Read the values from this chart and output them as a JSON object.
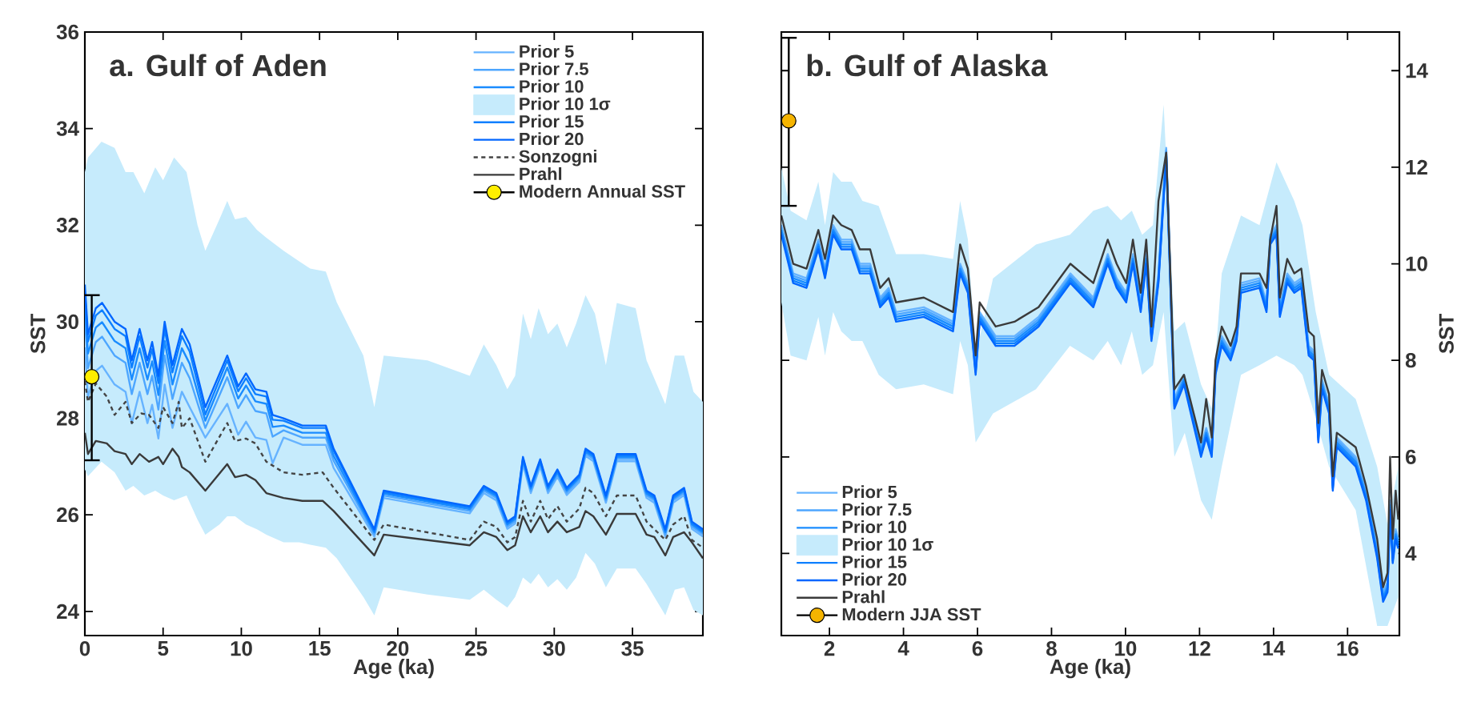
{
  "chart_data": [
    {
      "type": "line",
      "title": "a. Gulf of Aden",
      "xlabel": "Age (ka)",
      "ylabel": "SST",
      "legend": "top right",
      "xlim": [
        0,
        39.5
      ],
      "ylim": [
        23.5,
        36
      ],
      "xticks": [
        0,
        5,
        10,
        15,
        20,
        25,
        30,
        35
      ],
      "yticks": [
        24,
        26,
        28,
        30,
        32,
        34,
        36
      ],
      "x": [
        0,
        0.2,
        0.7,
        1.1,
        1.9,
        2.6,
        3.0,
        3.5,
        4.0,
        4.3,
        4.7,
        5.1,
        5.6,
        6.2,
        6.7,
        7.7,
        9.1,
        9.8,
        10.3,
        10.9,
        11.6,
        12.0,
        12.7,
        13.9,
        15.4,
        15.9,
        18.5,
        19.1,
        24.6,
        25.5,
        26.3,
        27.0,
        27.5,
        28.0,
        28.5,
        29.1,
        29.6,
        30.2,
        30.8,
        31.6,
        32.0,
        32.5,
        33.3,
        34.0,
        35.2,
        35.9,
        36.4,
        37.1,
        37.6,
        38.3,
        38.8,
        39.5
      ],
      "series": [
        {
          "name": "Prior 5",
          "color": "#66b3ff",
          "values": [
            29.47,
            28.44,
            28.98,
            29.09,
            28.7,
            28.55,
            27.9,
            28.55,
            27.9,
            28.28,
            27.58,
            28.7,
            27.8,
            28.55,
            28.23,
            27.6,
            28.3,
            27.66,
            27.93,
            27.6,
            27.55,
            27.07,
            27.6,
            27.45,
            27.45,
            26.97,
            25.55,
            26.35,
            26.03,
            26.45,
            26.3,
            25.71,
            25.82,
            27.05,
            26.45,
            27.0,
            26.45,
            26.79,
            26.41,
            26.68,
            27.22,
            27.11,
            26.25,
            27.11,
            27.11,
            26.35,
            26.25,
            25.55,
            26.25,
            26.41,
            25.71,
            25.55
          ]
        },
        {
          "name": "Prior 7.5",
          "color": "#4da6ff",
          "values": [
            30.07,
            29.04,
            29.58,
            29.69,
            29.3,
            29.15,
            28.5,
            29.15,
            28.5,
            28.88,
            28.18,
            29.3,
            28.4,
            29.15,
            28.83,
            27.8,
            28.85,
            28.21,
            28.48,
            28.15,
            28.1,
            27.62,
            27.75,
            27.6,
            27.6,
            27.12,
            25.6,
            26.4,
            26.08,
            26.5,
            26.35,
            25.76,
            25.87,
            27.1,
            26.5,
            27.05,
            26.5,
            26.84,
            26.46,
            26.73,
            27.27,
            27.16,
            26.3,
            27.16,
            27.16,
            26.4,
            26.3,
            25.6,
            26.3,
            26.46,
            25.76,
            25.6
          ]
        },
        {
          "name": "Prior 10",
          "color": "#1a8cff",
          "values": [
            30.37,
            29.34,
            29.88,
            29.99,
            29.6,
            29.45,
            28.8,
            29.45,
            28.8,
            29.18,
            28.48,
            29.6,
            28.7,
            29.45,
            29.13,
            27.95,
            29.05,
            28.41,
            28.68,
            28.35,
            28.3,
            27.82,
            27.85,
            27.7,
            27.7,
            27.22,
            25.64,
            26.44,
            26.12,
            26.54,
            26.39,
            25.8,
            25.91,
            27.14,
            26.54,
            27.09,
            26.54,
            26.88,
            26.5,
            26.77,
            27.31,
            27.2,
            26.34,
            27.2,
            27.2,
            26.44,
            26.34,
            25.64,
            26.34,
            26.5,
            25.8,
            25.64
          ]
        },
        {
          "name": "Prior 10 1σ",
          "type": "area",
          "color": "#c6ebfc",
          "values": [
            null,
            null,
            null,
            null,
            null,
            null,
            null,
            null,
            null,
            null,
            null,
            null,
            null,
            null,
            null,
            null,
            null,
            null,
            null,
            null,
            null,
            null,
            null,
            null,
            null,
            null,
            null,
            null,
            null,
            null,
            null,
            null,
            null,
            null,
            null,
            null,
            null,
            null,
            null,
            null,
            null,
            null,
            null,
            null,
            null,
            null,
            null,
            null,
            null,
            null,
            null
          ],
          "x": [
            0,
            0.2,
            1.06,
            1.9,
            2.6,
            3.1,
            3.8,
            4.5,
            5.0,
            5.7,
            6.5,
            7.2,
            7.7,
            8.6,
            9.1,
            9.6,
            10.3,
            11.0,
            11.6,
            12.7,
            13.7,
            14.4,
            15.4,
            16.1,
            17.8,
            18.5,
            19.1,
            21.9,
            24.6,
            25.5,
            26.3,
            27.0,
            27.5,
            28.0,
            28.5,
            29.0,
            29.6,
            30.2,
            30.8,
            31.4,
            32.0,
            32.6,
            33.3,
            34.0,
            35.2,
            35.9,
            37.1,
            37.7,
            38.3,
            38.9,
            39.5
          ],
          "upper": [
            33.1,
            33.4,
            33.73,
            33.6,
            33.1,
            33.1,
            32.66,
            33.2,
            32.93,
            33.4,
            33.1,
            32.0,
            31.47,
            32.12,
            32.5,
            32.12,
            32.17,
            31.9,
            31.74,
            31.47,
            31.25,
            31.1,
            31.04,
            30.4,
            29.3,
            28.23,
            29.3,
            29.2,
            28.88,
            29.53,
            29.1,
            28.6,
            28.88,
            30.17,
            29.64,
            30.28,
            29.74,
            29.96,
            29.47,
            29.96,
            30.55,
            30.17,
            29.1,
            30.39,
            30.28,
            29.2,
            28.29,
            29.3,
            29.3,
            28.55,
            28.34
          ],
          "lower": [
            26.94,
            26.8,
            27.1,
            26.88,
            26.5,
            26.6,
            26.4,
            26.5,
            26.4,
            26.3,
            26.4,
            25.9,
            25.59,
            25.8,
            25.97,
            25.97,
            25.8,
            25.7,
            25.59,
            25.43,
            25.43,
            25.38,
            25.32,
            25.1,
            24.3,
            23.92,
            24.5,
            24.35,
            24.24,
            24.45,
            24.24,
            24.08,
            24.3,
            24.7,
            24.57,
            24.78,
            24.5,
            24.67,
            24.45,
            24.7,
            25.21,
            24.99,
            24.5,
            24.89,
            24.89,
            24.57,
            23.92,
            24.45,
            24.5,
            24.03,
            23.92
          ]
        },
        {
          "name": "Prior 15",
          "color": "#0d7fff",
          "values": [
            30.62,
            29.59,
            30.13,
            30.24,
            29.85,
            29.7,
            29.05,
            29.7,
            29.05,
            29.43,
            28.73,
            29.85,
            28.95,
            29.7,
            29.38,
            28.08,
            29.2,
            28.56,
            28.83,
            28.5,
            28.45,
            27.97,
            27.95,
            27.8,
            27.8,
            27.32,
            25.67,
            26.47,
            26.15,
            26.57,
            26.42,
            25.83,
            25.94,
            27.17,
            26.57,
            27.12,
            26.57,
            26.91,
            26.53,
            26.8,
            27.34,
            27.23,
            26.37,
            27.23,
            27.23,
            26.47,
            26.37,
            25.67,
            26.37,
            26.53,
            25.83,
            25.67
          ]
        },
        {
          "name": "Prior 20",
          "color": "#0066ff",
          "values": [
            30.77,
            29.74,
            30.28,
            30.39,
            30.0,
            29.85,
            29.2,
            29.85,
            29.2,
            29.58,
            28.88,
            30.0,
            29.1,
            29.85,
            29.53,
            28.23,
            29.3,
            28.66,
            28.93,
            28.6,
            28.55,
            28.07,
            28.0,
            27.85,
            27.85,
            27.37,
            25.7,
            26.5,
            26.18,
            26.6,
            26.45,
            25.86,
            25.97,
            27.2,
            26.6,
            27.15,
            26.6,
            26.94,
            26.56,
            26.83,
            27.37,
            27.26,
            26.4,
            27.26,
            27.26,
            26.5,
            26.4,
            25.7,
            26.4,
            26.56,
            25.86,
            25.7
          ]
        },
        {
          "name": "Sonzogni",
          "color": "#444444",
          "line_style": "dashed",
          "x": [
            0,
            0.2,
            0.7,
            1.4,
            1.9,
            2.6,
            3.0,
            3.6,
            4.1,
            4.7,
            5.0,
            5.6,
            6.0,
            6.2,
            6.7,
            7.7,
            9.1,
            9.6,
            10.3,
            10.9,
            11.6,
            12.7,
            13.9,
            15.2,
            15.9,
            18.5,
            19.1,
            24.6,
            25.5,
            26.3,
            27.0,
            27.5,
            28.0,
            28.5,
            29.1,
            29.6,
            30.2,
            30.8,
            31.6,
            32.0,
            32.5,
            33.3,
            34.0,
            35.2,
            35.9,
            37.1,
            37.6,
            38.3,
            38.8,
            39.5
          ],
          "values": [
            28.77,
            28.34,
            28.72,
            28.45,
            28.07,
            28.34,
            27.9,
            28.1,
            28.07,
            27.8,
            28.23,
            27.9,
            28.34,
            27.8,
            28.0,
            27.1,
            27.9,
            27.53,
            27.58,
            27.48,
            27.1,
            26.88,
            26.83,
            26.88,
            26.56,
            25.48,
            25.8,
            25.48,
            25.86,
            25.75,
            25.43,
            25.54,
            26.29,
            25.86,
            26.29,
            25.91,
            26.18,
            25.86,
            26.13,
            26.56,
            26.45,
            25.97,
            26.4,
            26.4,
            25.86,
            25.48,
            25.8,
            25.97,
            25.48,
            25.32
          ]
        },
        {
          "name": "Prahl",
          "color": "#3a3a3a",
          "x": [
            0,
            0.2,
            0.7,
            1.4,
            1.9,
            2.6,
            3.0,
            3.5,
            4.1,
            4.7,
            5.0,
            5.6,
            6.0,
            6.2,
            6.7,
            7.7,
            9.1,
            9.6,
            10.3,
            10.9,
            11.6,
            12.7,
            13.9,
            15.2,
            15.9,
            18.5,
            19.1,
            24.6,
            25.5,
            26.3,
            27.0,
            27.5,
            28.0,
            28.5,
            29.1,
            29.6,
            30.2,
            30.8,
            31.6,
            32.0,
            32.5,
            33.3,
            34.0,
            35.2,
            35.9,
            36.4,
            37.1,
            37.6,
            38.3,
            38.8,
            39.5
          ],
          "values": [
            27.7,
            27.26,
            27.53,
            27.48,
            27.32,
            27.26,
            27.05,
            27.26,
            27.1,
            27.2,
            27.05,
            27.37,
            27.2,
            26.99,
            26.88,
            26.5,
            27.05,
            26.78,
            26.83,
            26.72,
            26.45,
            26.35,
            26.29,
            26.29,
            26.08,
            25.16,
            25.59,
            25.37,
            25.64,
            25.54,
            25.27,
            25.37,
            25.97,
            25.64,
            25.97,
            25.64,
            25.86,
            25.64,
            25.75,
            26.08,
            25.97,
            25.59,
            26.02,
            26.02,
            25.59,
            25.54,
            25.16,
            25.54,
            25.64,
            25.43,
            25.1
          ]
        },
        {
          "name": "Modern Annual SST",
          "type": "scatter",
          "color": "#ffee00",
          "marker": "circle",
          "x": [
            0.44
          ],
          "values": [
            28.86
          ],
          "errors": [
            [
              27.13,
              30.55
            ]
          ]
        }
      ]
    },
    {
      "type": "line",
      "title": "b. Gulf of Alaska",
      "xlabel": "Age (ka)",
      "y2label": "SST",
      "legend": "bottom left",
      "xlim": [
        0.7,
        17.4
      ],
      "y2lim": [
        2.3,
        14.8
      ],
      "xticks": [
        2,
        4,
        6,
        8,
        10,
        12,
        14,
        16
      ],
      "y2ticks": [
        4,
        6,
        8,
        10,
        12,
        14
      ],
      "x": [
        0.7,
        1.02,
        1.38,
        1.7,
        1.88,
        2.1,
        2.32,
        2.6,
        2.82,
        3.1,
        3.37,
        3.6,
        3.8,
        4.55,
        5.34,
        5.53,
        5.74,
        5.95,
        6.06,
        6.49,
        7.0,
        7.65,
        8.51,
        9.13,
        9.52,
        9.76,
        10.02,
        10.2,
        10.41,
        10.56,
        10.7,
        10.89,
        11.1,
        11.32,
        11.58,
        12.04,
        12.18,
        12.33,
        12.43,
        12.6,
        12.84,
        13.0,
        13.12,
        13.62,
        13.81,
        13.91,
        14.08,
        14.17,
        14.37,
        14.56,
        14.75,
        14.95,
        15.09,
        15.21,
        15.31,
        15.5,
        15.6,
        15.71,
        16.22,
        16.5,
        16.8,
        16.96,
        17.08,
        17.15,
        17.22,
        17.3,
        17.37
      ],
      "series": [
        {
          "name": "Prior 5",
          "color": "#66b3ff",
          "axis": "y2",
          "values": [
            10.8,
            9.8,
            9.7,
            10.5,
            9.9,
            10.8,
            10.5,
            10.5,
            10.0,
            10.0,
            9.3,
            9.5,
            9.0,
            9.1,
            8.8,
            10.0,
            9.6,
            7.9,
            9.0,
            8.5,
            8.5,
            8.9,
            9.8,
            9.3,
            10.2,
            9.7,
            9.4,
            10.2,
            9.2,
            10.2,
            8.6,
            9.8,
            12.4,
            7.2,
            7.7,
            6.2,
            6.6,
            6.2,
            7.9,
            8.5,
            8.2,
            8.6,
            9.6,
            9.7,
            9.2,
            10.6,
            10.8,
            9.1,
            9.8,
            9.6,
            9.7,
            8.3,
            8.2,
            6.5,
            7.6,
            7.1,
            5.5,
            6.4,
            6.0,
            5.3,
            4.1,
            3.2,
            3.4,
            5.1,
            4.0,
            4.5,
            4.3
          ]
        },
        {
          "name": "Prior 7.5",
          "color": "#4da6ff",
          "axis": "y2",
          "values": [
            10.75,
            9.75,
            9.65,
            10.45,
            9.85,
            10.75,
            10.45,
            10.45,
            9.95,
            9.95,
            9.25,
            9.45,
            8.95,
            9.05,
            8.75,
            9.95,
            9.55,
            7.85,
            8.95,
            8.45,
            8.45,
            8.85,
            9.75,
            9.25,
            10.15,
            9.65,
            9.35,
            10.15,
            9.15,
            10.15,
            8.55,
            9.75,
            12.35,
            7.15,
            7.65,
            6.15,
            6.55,
            6.15,
            7.85,
            8.45,
            8.15,
            8.55,
            9.55,
            9.65,
            9.15,
            10.55,
            10.75,
            9.05,
            9.75,
            9.55,
            9.65,
            8.25,
            8.15,
            6.45,
            7.55,
            7.05,
            5.45,
            6.35,
            5.95,
            5.25,
            4.05,
            3.15,
            3.35,
            5.05,
            3.95,
            4.45,
            4.25
          ]
        },
        {
          "name": "Prior 10",
          "color": "#1a8cff",
          "axis": "y2",
          "values": [
            10.7,
            9.7,
            9.6,
            10.4,
            9.8,
            10.7,
            10.4,
            10.4,
            9.9,
            9.9,
            9.2,
            9.4,
            8.9,
            9.0,
            8.7,
            9.9,
            9.5,
            7.8,
            8.9,
            8.4,
            8.4,
            8.8,
            9.7,
            9.2,
            10.1,
            9.6,
            9.3,
            10.1,
            9.1,
            10.1,
            8.5,
            9.7,
            12.3,
            7.1,
            7.6,
            6.1,
            6.5,
            6.1,
            7.8,
            8.4,
            8.1,
            8.5,
            9.5,
            9.6,
            9.1,
            10.5,
            10.7,
            9.0,
            9.7,
            9.5,
            9.6,
            8.2,
            8.1,
            6.4,
            7.5,
            7.0,
            5.4,
            6.3,
            5.9,
            5.2,
            4.0,
            3.1,
            3.3,
            5.0,
            3.9,
            4.4,
            4.2
          ]
        },
        {
          "name": "Prior 10 1σ",
          "type": "area",
          "color": "#c6ebfc",
          "axis": "y2",
          "values": [
            null,
            null,
            null,
            null,
            null,
            null,
            null,
            null,
            null,
            null,
            null,
            null,
            null,
            null,
            null,
            null,
            null,
            null,
            null,
            null,
            null,
            null,
            null,
            null,
            null,
            null,
            null,
            null,
            null,
            null,
            null,
            null,
            null,
            null,
            null,
            null,
            null,
            null,
            null,
            null,
            null,
            null
          ],
          "x": [
            0.7,
            0.95,
            1.38,
            1.7,
            1.88,
            2.1,
            2.32,
            2.6,
            2.89,
            3.33,
            3.8,
            4.55,
            5.34,
            5.53,
            5.74,
            5.95,
            6.42,
            7.58,
            8.5,
            9.13,
            9.52,
            9.88,
            10.17,
            10.45,
            10.74,
            11.03,
            11.32,
            11.6,
            12.04,
            12.33,
            12.6,
            13.12,
            13.62,
            14.08,
            14.56,
            14.78,
            15.14,
            15.5,
            16.22,
            16.8,
            17.08,
            17.37
          ],
          "upper": [
            12.0,
            11.1,
            10.9,
            11.7,
            10.8,
            11.9,
            11.7,
            11.7,
            11.3,
            11.2,
            10.2,
            10.2,
            10.1,
            11.3,
            10.5,
            8.1,
            9.7,
            10.4,
            10.6,
            11.1,
            11.2,
            10.9,
            11.1,
            10.6,
            10.8,
            13.3,
            8.6,
            8.8,
            7.5,
            7.0,
            9.8,
            11.0,
            10.8,
            12.1,
            11.3,
            10.8,
            9.0,
            7.7,
            7.2,
            5.8,
            4.6,
            5.8
          ],
          "lower": [
            9.2,
            8.1,
            8.0,
            8.9,
            8.1,
            9.0,
            8.6,
            8.4,
            8.4,
            7.7,
            7.4,
            7.5,
            7.3,
            8.4,
            7.9,
            6.3,
            6.9,
            7.4,
            8.3,
            8.0,
            8.4,
            7.9,
            8.6,
            7.7,
            7.9,
            9.0,
            6.0,
            6.5,
            5.1,
            4.7,
            5.8,
            7.7,
            7.9,
            8.1,
            7.9,
            7.7,
            6.8,
            5.8,
            4.9,
            2.5,
            2.5,
            3.1
          ]
        },
        {
          "name": "Prior 15",
          "color": "#0d7fff",
          "axis": "y2",
          "values": [
            10.65,
            9.65,
            9.55,
            10.35,
            9.75,
            10.65,
            10.35,
            10.35,
            9.85,
            9.85,
            9.15,
            9.35,
            8.85,
            8.95,
            8.65,
            9.85,
            9.45,
            7.75,
            8.85,
            8.35,
            8.35,
            8.75,
            9.65,
            9.15,
            10.05,
            9.55,
            9.25,
            10.05,
            9.05,
            10.05,
            8.45,
            9.65,
            12.25,
            7.05,
            7.55,
            6.05,
            6.45,
            6.05,
            7.75,
            8.35,
            8.05,
            8.45,
            9.45,
            9.55,
            9.05,
            10.45,
            10.65,
            8.95,
            9.65,
            9.45,
            9.55,
            8.15,
            8.05,
            6.35,
            7.45,
            6.95,
            5.35,
            6.25,
            5.85,
            5.15,
            3.95,
            3.05,
            3.25,
            4.95,
            3.85,
            4.35,
            4.15
          ]
        },
        {
          "name": "Prior 20",
          "color": "#0066ff",
          "axis": "y2",
          "values": [
            10.6,
            9.6,
            9.5,
            10.3,
            9.7,
            10.6,
            10.3,
            10.3,
            9.8,
            9.8,
            9.1,
            9.3,
            8.8,
            8.9,
            8.6,
            9.8,
            9.4,
            7.7,
            8.8,
            8.3,
            8.3,
            8.7,
            9.6,
            9.1,
            10.0,
            9.5,
            9.2,
            10.0,
            9.0,
            10.0,
            8.4,
            9.6,
            12.2,
            7.0,
            7.5,
            6.0,
            6.4,
            6.0,
            7.7,
            8.3,
            8.0,
            8.4,
            9.4,
            9.5,
            9.0,
            10.4,
            10.6,
            8.9,
            9.6,
            9.4,
            9.5,
            8.1,
            8.0,
            6.3,
            7.4,
            6.9,
            5.3,
            6.2,
            5.8,
            5.1,
            3.9,
            3.0,
            3.2,
            4.9,
            3.8,
            4.3,
            4.1
          ]
        },
        {
          "name": "Prahl",
          "color": "#3a3a3a",
          "axis": "y2",
          "values": [
            11.0,
            10.0,
            9.9,
            10.7,
            10.1,
            11.0,
            10.8,
            10.7,
            10.3,
            10.3,
            9.5,
            9.7,
            9.2,
            9.3,
            9.0,
            10.4,
            9.9,
            8.1,
            9.2,
            8.7,
            8.8,
            9.1,
            10.0,
            9.6,
            10.5,
            10.0,
            9.6,
            10.5,
            9.4,
            10.5,
            8.7,
            11.3,
            12.3,
            7.4,
            7.7,
            6.3,
            7.2,
            6.4,
            8.0,
            8.7,
            8.3,
            8.7,
            9.8,
            9.8,
            9.5,
            10.5,
            11.2,
            9.3,
            10.1,
            9.8,
            9.9,
            8.6,
            8.5,
            6.7,
            7.8,
            7.3,
            5.6,
            6.5,
            6.2,
            5.4,
            4.3,
            3.3,
            3.6,
            6.0,
            4.3,
            5.3,
            4.7
          ]
        },
        {
          "name": "Modern JJA SST",
          "type": "scatter",
          "color": "#f5b400",
          "axis": "y2",
          "marker": "circle",
          "x": [
            0.9
          ],
          "values": [
            12.96
          ],
          "errors": [
            [
              11.2,
              14.68
            ]
          ]
        }
      ]
    }
  ]
}
